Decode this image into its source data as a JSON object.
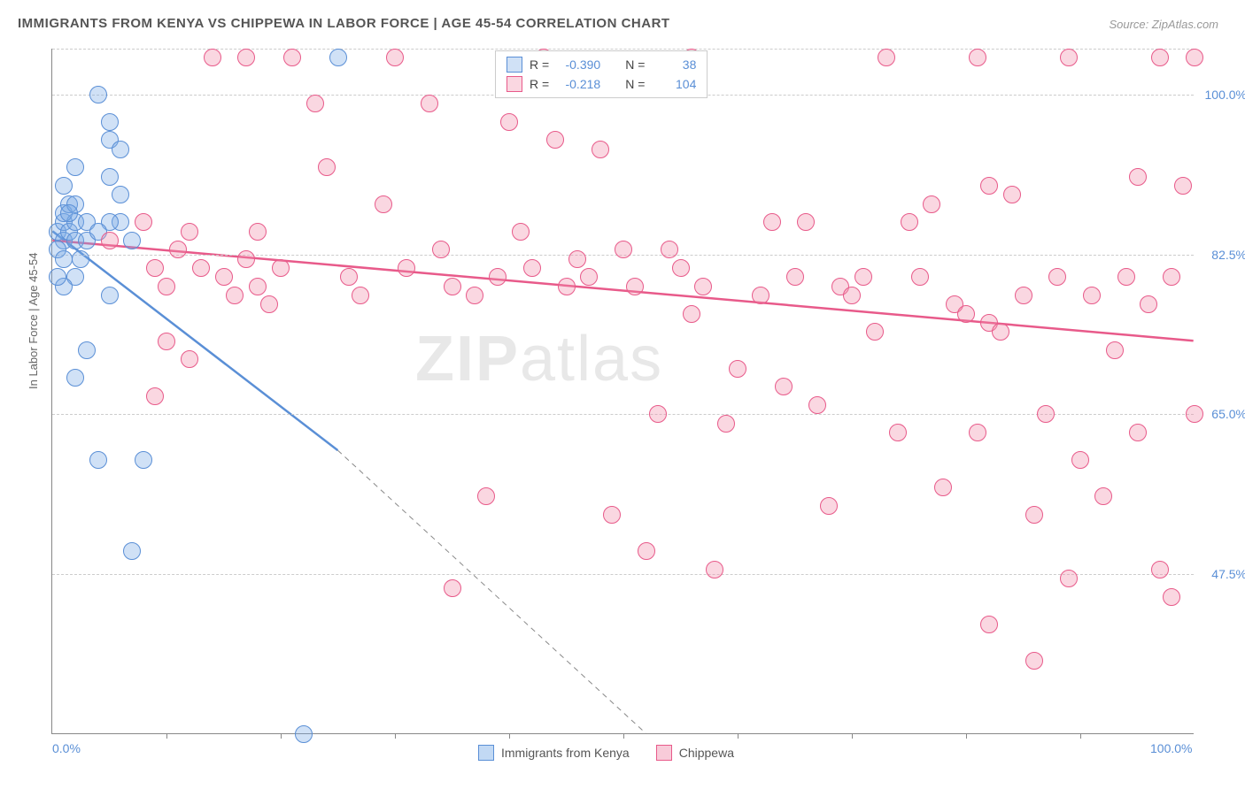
{
  "title": "IMMIGRANTS FROM KENYA VS CHIPPEWA IN LABOR FORCE | AGE 45-54 CORRELATION CHART",
  "source": "Source: ZipAtlas.com",
  "y_axis_title": "In Labor Force | Age 45-54",
  "watermark": {
    "part1": "ZIP",
    "part2": "atlas"
  },
  "chart": {
    "type": "scatter",
    "xlim": [
      0,
      100
    ],
    "ylim": [
      30,
      105
    ],
    "y_ticks": [
      {
        "value": 47.5,
        "label": "47.5%"
      },
      {
        "value": 65.0,
        "label": "65.0%"
      },
      {
        "value": 82.5,
        "label": "82.5%"
      },
      {
        "value": 100.0,
        "label": "100.0%"
      }
    ],
    "y_grid_extra": [
      105
    ],
    "x_ticks": [
      {
        "value": 0,
        "label": "0.0%"
      },
      {
        "value": 100,
        "label": "100.0%"
      }
    ],
    "x_minor_ticks": [
      10,
      20,
      30,
      40,
      50,
      60,
      70,
      80,
      90
    ],
    "background_color": "#ffffff",
    "grid_color": "#cccccc",
    "point_radius": 10,
    "series": [
      {
        "name": "Immigrants from Kenya",
        "color_fill": "rgba(120,170,230,0.35)",
        "color_stroke": "#5a8fd6",
        "r_value": "-0.390",
        "n_value": "38",
        "trend": {
          "x1": 0,
          "y1": 85,
          "x2": 25,
          "y2": 61,
          "dash_x2": 52,
          "dash_y2": 30
        },
        "points": [
          [
            0.5,
            85
          ],
          [
            1,
            84
          ],
          [
            1,
            86
          ],
          [
            1.5,
            85
          ],
          [
            2,
            86
          ],
          [
            1,
            87
          ],
          [
            1.5,
            88
          ],
          [
            2,
            88
          ],
          [
            0.5,
            83
          ],
          [
            2,
            84
          ],
          [
            3,
            86
          ],
          [
            2.5,
            82
          ],
          [
            1,
            82
          ],
          [
            3,
            84
          ],
          [
            2,
            80
          ],
          [
            1,
            79
          ],
          [
            0.5,
            80
          ],
          [
            4,
            100
          ],
          [
            5,
            97
          ],
          [
            5,
            95
          ],
          [
            6,
            94
          ],
          [
            5,
            91
          ],
          [
            6,
            89
          ],
          [
            6,
            86
          ],
          [
            7,
            84
          ],
          [
            5,
            86
          ],
          [
            4,
            85
          ],
          [
            3,
            72
          ],
          [
            2,
            69
          ],
          [
            5,
            78
          ],
          [
            4,
            60
          ],
          [
            8,
            60
          ],
          [
            7,
            50
          ],
          [
            25,
            104
          ],
          [
            22,
            30
          ],
          [
            1,
            90
          ],
          [
            2,
            92
          ],
          [
            1.5,
            87
          ]
        ]
      },
      {
        "name": "Chippewa",
        "color_fill": "rgba(240,140,170,0.35)",
        "color_stroke": "#e85a8a",
        "r_value": "-0.218",
        "n_value": "104",
        "trend": {
          "x1": 0,
          "y1": 84,
          "x2": 100,
          "y2": 73
        },
        "points": [
          [
            5,
            84
          ],
          [
            8,
            86
          ],
          [
            9,
            81
          ],
          [
            10,
            79
          ],
          [
            11,
            83
          ],
          [
            12,
            85
          ],
          [
            13,
            81
          ],
          [
            14,
            104
          ],
          [
            15,
            80
          ],
          [
            16,
            78
          ],
          [
            17,
            82
          ],
          [
            18,
            85
          ],
          [
            18,
            79
          ],
          [
            19,
            77
          ],
          [
            20,
            81
          ],
          [
            21,
            104
          ],
          [
            10,
            73
          ],
          [
            12,
            71
          ],
          [
            9,
            67
          ],
          [
            17,
            104
          ],
          [
            23,
            99
          ],
          [
            24,
            92
          ],
          [
            26,
            80
          ],
          [
            27,
            78
          ],
          [
            29,
            88
          ],
          [
            30,
            104
          ],
          [
            31,
            81
          ],
          [
            33,
            99
          ],
          [
            34,
            83
          ],
          [
            35,
            79
          ],
          [
            35,
            46
          ],
          [
            37,
            78
          ],
          [
            38,
            56
          ],
          [
            39,
            80
          ],
          [
            40,
            97
          ],
          [
            41,
            85
          ],
          [
            42,
            81
          ],
          [
            43,
            104
          ],
          [
            44,
            95
          ],
          [
            45,
            79
          ],
          [
            46,
            82
          ],
          [
            47,
            80
          ],
          [
            48,
            94
          ],
          [
            49,
            54
          ],
          [
            50,
            83
          ],
          [
            51,
            79
          ],
          [
            52,
            50
          ],
          [
            53,
            65
          ],
          [
            54,
            83
          ],
          [
            55,
            81
          ],
          [
            56,
            76
          ],
          [
            57,
            79
          ],
          [
            58,
            48
          ],
          [
            59,
            64
          ],
          [
            56,
            104
          ],
          [
            60,
            70
          ],
          [
            62,
            78
          ],
          [
            63,
            86
          ],
          [
            64,
            68
          ],
          [
            65,
            80
          ],
          [
            66,
            86
          ],
          [
            67,
            66
          ],
          [
            68,
            55
          ],
          [
            69,
            79
          ],
          [
            70,
            78
          ],
          [
            71,
            80
          ],
          [
            72,
            74
          ],
          [
            73,
            104
          ],
          [
            74,
            63
          ],
          [
            75,
            86
          ],
          [
            76,
            80
          ],
          [
            77,
            88
          ],
          [
            78,
            57
          ],
          [
            79,
            77
          ],
          [
            80,
            76
          ],
          [
            81,
            104
          ],
          [
            81,
            63
          ],
          [
            82,
            75
          ],
          [
            82,
            90
          ],
          [
            83,
            74
          ],
          [
            84,
            89
          ],
          [
            85,
            78
          ],
          [
            86,
            54
          ],
          [
            86,
            38
          ],
          [
            87,
            65
          ],
          [
            88,
            80
          ],
          [
            89,
            47
          ],
          [
            89,
            104
          ],
          [
            90,
            60
          ],
          [
            91,
            78
          ],
          [
            92,
            56
          ],
          [
            93,
            72
          ],
          [
            94,
            80
          ],
          [
            95,
            63
          ],
          [
            95,
            91
          ],
          [
            96,
            77
          ],
          [
            97,
            48
          ],
          [
            97,
            104
          ],
          [
            98,
            80
          ],
          [
            98,
            45
          ],
          [
            99,
            90
          ],
          [
            100,
            104
          ],
          [
            100,
            65
          ],
          [
            82,
            42
          ]
        ]
      }
    ]
  },
  "legend_top": {
    "r_label": "R =",
    "n_label": "N ="
  },
  "legend_bottom": {
    "items": [
      {
        "label": "Immigrants from Kenya",
        "fill": "rgba(120,170,230,0.45)",
        "stroke": "#5a8fd6"
      },
      {
        "label": "Chippewa",
        "fill": "rgba(240,140,170,0.45)",
        "stroke": "#e85a8a"
      }
    ]
  }
}
